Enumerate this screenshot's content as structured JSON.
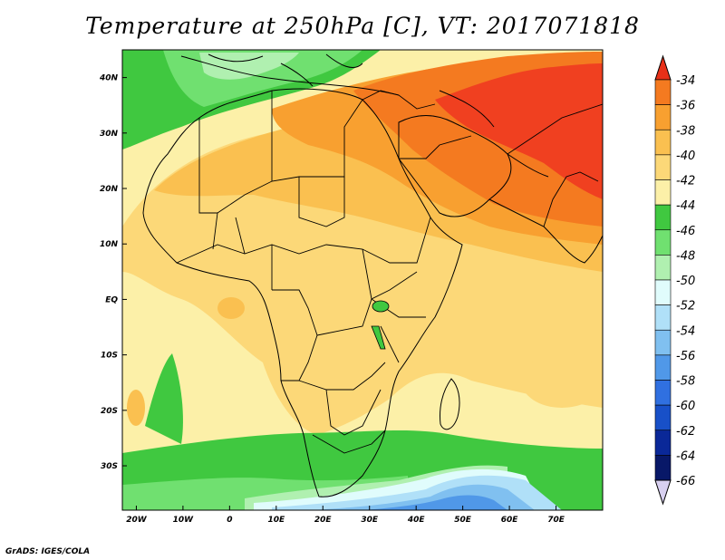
{
  "title": "Temperature at 250hPa [C], VT: 2017071818",
  "credit": "GrADS: IGES/COLA",
  "map": {
    "projection": "latlon",
    "lon_range": [
      -23,
      80
    ],
    "lat_range": [
      -38,
      45
    ],
    "lat_ticks": [
      {
        "value": 40,
        "label": "40N"
      },
      {
        "value": 30,
        "label": "30N"
      },
      {
        "value": 20,
        "label": "20N"
      },
      {
        "value": 10,
        "label": "10N"
      },
      {
        "value": 0,
        "label": "EQ"
      },
      {
        "value": -10,
        "label": "10S"
      },
      {
        "value": -20,
        "label": "20S"
      },
      {
        "value": -30,
        "label": "30S"
      }
    ],
    "lon_ticks": [
      {
        "value": -20,
        "label": "20W"
      },
      {
        "value": -10,
        "label": "10W"
      },
      {
        "value": 0,
        "label": "0"
      },
      {
        "value": 10,
        "label": "10E"
      },
      {
        "value": 20,
        "label": "20E"
      },
      {
        "value": 30,
        "label": "30E"
      },
      {
        "value": 40,
        "label": "40E"
      },
      {
        "value": 50,
        "label": "50E"
      },
      {
        "value": 60,
        "label": "60E"
      },
      {
        "value": 70,
        "label": "70E"
      }
    ]
  },
  "colorbar": {
    "levels": [
      {
        "label": "-34",
        "color": "#f04020"
      },
      {
        "label": "-36",
        "color": "#f47a20"
      },
      {
        "label": "-38",
        "color": "#f8a030"
      },
      {
        "label": "-40",
        "color": "#fac050"
      },
      {
        "label": "-42",
        "color": "#fcd878"
      },
      {
        "label": "-44",
        "color": "#fcf0a8"
      },
      {
        "label": "-46",
        "color": "#40c840"
      },
      {
        "label": "-48",
        "color": "#70e070"
      },
      {
        "label": "-50",
        "color": "#b0f0b0"
      },
      {
        "label": "-52",
        "color": "#e0fcfc"
      },
      {
        "label": "-54",
        "color": "#b0e0f8"
      },
      {
        "label": "-56",
        "color": "#80c0f0"
      },
      {
        "label": "-58",
        "color": "#5098e8"
      },
      {
        "label": "-60",
        "color": "#3070e0"
      },
      {
        "label": "-62",
        "color": "#1850c8"
      },
      {
        "label": "-64",
        "color": "#0a2898"
      },
      {
        "label": "-66",
        "color": "#081868"
      }
    ],
    "over_color": "#e83018",
    "under_color": "#d8d0f0"
  }
}
